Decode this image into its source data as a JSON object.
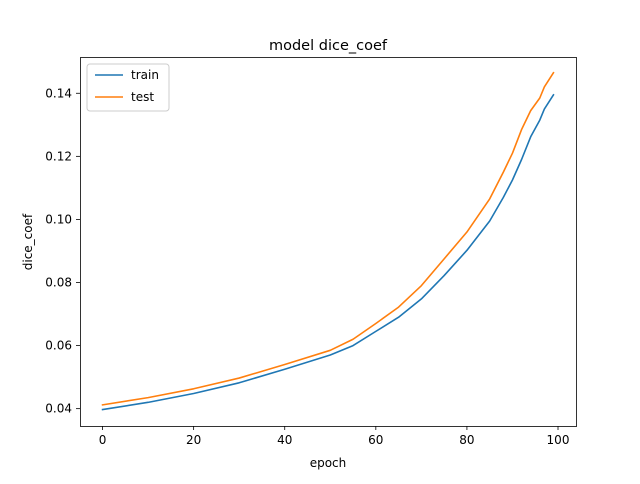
{
  "chart_data": {
    "type": "line",
    "title": "model dice_coef",
    "xlabel": "epoch",
    "ylabel": "dice_coef",
    "xlim": [
      -4.95,
      103.95
    ],
    "ylim": [
      0.0345,
      0.1515
    ],
    "xticks": [
      0,
      20,
      40,
      60,
      80,
      100
    ],
    "yticks": [
      0.04,
      0.06,
      0.08,
      0.1,
      0.12,
      0.14
    ],
    "xtick_labels": [
      "0",
      "20",
      "40",
      "60",
      "80",
      "100"
    ],
    "ytick_labels": [
      "0.04",
      "0.06",
      "0.08",
      "0.10",
      "0.12",
      "0.14"
    ],
    "grid": false,
    "legend_position": "upper-left",
    "series": [
      {
        "name": "train",
        "color": "#1f77b4",
        "points": [
          [
            0,
            0.0397
          ],
          [
            10,
            0.042
          ],
          [
            20,
            0.0448
          ],
          [
            30,
            0.0482
          ],
          [
            40,
            0.0525
          ],
          [
            50,
            0.057
          ],
          [
            55,
            0.06
          ],
          [
            60,
            0.0645
          ],
          [
            65,
            0.069
          ],
          [
            70,
            0.0748
          ],
          [
            75,
            0.0822
          ],
          [
            80,
            0.0902
          ],
          [
            85,
            0.0995
          ],
          [
            88,
            0.107
          ],
          [
            90,
            0.1125
          ],
          [
            92,
            0.119
          ],
          [
            94,
            0.1262
          ],
          [
            96,
            0.1315
          ],
          [
            97,
            0.135
          ],
          [
            99,
            0.1395
          ]
        ]
      },
      {
        "name": "test",
        "color": "#ff7f0e",
        "points": [
          [
            0,
            0.0412
          ],
          [
            10,
            0.0435
          ],
          [
            20,
            0.0463
          ],
          [
            30,
            0.0497
          ],
          [
            40,
            0.054
          ],
          [
            50,
            0.0585
          ],
          [
            55,
            0.062
          ],
          [
            60,
            0.067
          ],
          [
            65,
            0.0722
          ],
          [
            70,
            0.079
          ],
          [
            75,
            0.0875
          ],
          [
            80,
            0.096
          ],
          [
            85,
            0.1065
          ],
          [
            88,
            0.115
          ],
          [
            90,
            0.121
          ],
          [
            92,
            0.1285
          ],
          [
            94,
            0.1345
          ],
          [
            96,
            0.1385
          ],
          [
            97,
            0.142
          ],
          [
            99,
            0.1465
          ]
        ]
      }
    ]
  }
}
